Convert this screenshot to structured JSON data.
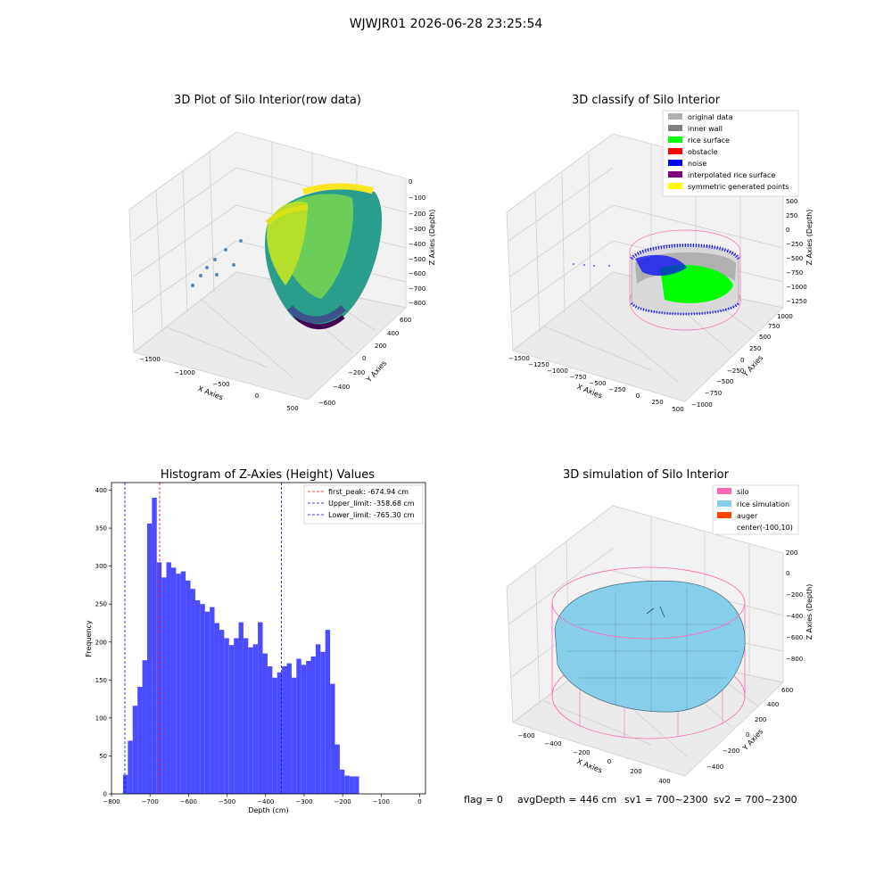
{
  "suptitle": "WJWJR01 2026-06-28 23:25:54",
  "footer": {
    "flag": "flag = 0",
    "avg_depth": "avgDepth = 446 cm",
    "sv1": "sv1 = 700~2300",
    "sv2": "sv2 = 700~2300"
  },
  "colors": {
    "hist_bar": "#4b4bff",
    "first_peak_line": "#ff0000",
    "limit_line": "#0000ff",
    "silo_wire": "#ff69b4",
    "rice_fill": "#87ceeb",
    "rice_surface": "#00ff00",
    "noise": "#0000ff",
    "inner_wall": "#808080"
  },
  "plot_raw": {
    "title": "3D Plot of Silo Interior(row data)",
    "xlabel": "X Axies",
    "ylabel": "Y Axies",
    "zlabel": "Z Axies (Depth)",
    "x_ticks": [
      "−1500",
      "−1000",
      "−500",
      "0",
      "500"
    ],
    "y_ticks": [
      "−600",
      "−400",
      "−200",
      "0",
      "200",
      "400",
      "600"
    ],
    "z_ticks": [
      "0",
      "−100",
      "−200",
      "−300",
      "−400",
      "−500",
      "−600",
      "−700",
      "−800"
    ]
  },
  "plot_classify": {
    "title": "3D classify of Silo Interior",
    "xlabel": "X Axies",
    "ylabel": "Y Axies",
    "zlabel": "Z Axies (Depth)",
    "x_ticks": [
      "−1500",
      "−1250",
      "−1000",
      "−750",
      "−500",
      "−250",
      "0",
      "250",
      "500"
    ],
    "y_ticks": [
      "−1000",
      "−750",
      "−500",
      "−250",
      "0",
      "250",
      "500",
      "750",
      "1000"
    ],
    "z_ticks": [
      "500",
      "250",
      "0",
      "−250",
      "−500",
      "−750",
      "−1000",
      "−1250"
    ],
    "legend": [
      {
        "label": "original data",
        "color": "#b0b0b0"
      },
      {
        "label": "inner wall",
        "color": "#808080"
      },
      {
        "label": "rice surface",
        "color": "#00ff00"
      },
      {
        "label": "obstacle",
        "color": "#ff0000"
      },
      {
        "label": "noise",
        "color": "#0000ff"
      },
      {
        "label": "interpolated rice surface",
        "color": "#800080"
      },
      {
        "label": "symmetric generated points",
        "color": "#ffff00"
      }
    ]
  },
  "plot_sim": {
    "title": "3D simulation of Silo Interior",
    "xlabel": "X Axies",
    "ylabel": "Y Axies",
    "zlabel": "Z Axies (Depth)",
    "x_ticks": [
      "−600",
      "−400",
      "−200",
      "0",
      "200",
      "400"
    ],
    "y_ticks": [
      "−400",
      "−200",
      "0",
      "200",
      "400",
      "600"
    ],
    "z_ticks": [
      "200",
      "0",
      "−200",
      "−400",
      "−600",
      "−800"
    ],
    "legend": [
      {
        "label": "silo",
        "color": "#ff69b4"
      },
      {
        "label": "rice simulation",
        "color": "#87ceeb"
      },
      {
        "label": "auger",
        "color": "#ff4500"
      },
      {
        "label": "center(-100,10)",
        "color": ""
      }
    ]
  },
  "chart_data": {
    "type": "bar",
    "title": "Histogram of Z-Axies (Height) Values",
    "xlabel": "Depth (cm)",
    "ylabel": "Frequency",
    "xlim": [
      -800,
      15
    ],
    "ylim": [
      0,
      410
    ],
    "x_ticks": [
      -800,
      -700,
      -600,
      -500,
      -400,
      -300,
      -200,
      -100,
      0
    ],
    "y_ticks": [
      0,
      50,
      100,
      150,
      200,
      250,
      300,
      350,
      400
    ],
    "bin_start": -770,
    "bin_width": 12.5,
    "values": [
      25,
      70,
      116,
      141,
      176,
      356,
      390,
      305,
      285,
      305,
      298,
      290,
      293,
      281,
      270,
      255,
      250,
      240,
      246,
      225,
      216,
      205,
      196,
      205,
      226,
      205,
      193,
      197,
      226,
      185,
      168,
      153,
      160,
      168,
      172,
      153,
      178,
      170,
      175,
      181,
      197,
      187,
      216,
      145,
      65,
      32,
      24,
      23,
      23
    ],
    "vlines": [
      {
        "label": "first_peak: -674.94 cm",
        "x": -674.94,
        "color": "#ff0000"
      },
      {
        "label": "Upper_limit: -358.68 cm",
        "x": -358.68,
        "color": "#0000ff"
      },
      {
        "label": "Lower_limit: -765.30 cm",
        "x": -765.3,
        "color": "#0000ff"
      }
    ],
    "grid": false,
    "legend_position": "top-right"
  }
}
